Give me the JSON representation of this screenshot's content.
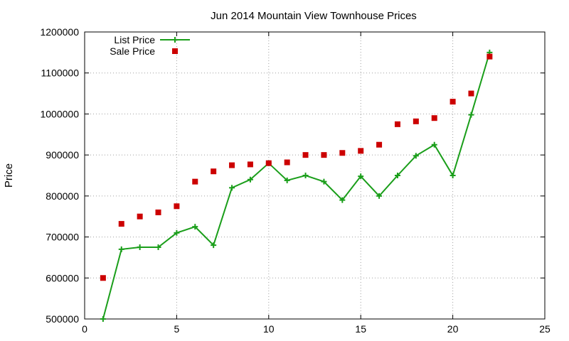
{
  "chart_data": {
    "type": "line",
    "title": "Jun 2014 Mountain View Townhouse Prices",
    "xlabel": "",
    "ylabel": "Price",
    "xlim": [
      0,
      25
    ],
    "ylim": [
      500000,
      1200000
    ],
    "x_ticks": [
      0,
      5,
      10,
      15,
      20,
      25
    ],
    "y_ticks": [
      500000,
      600000,
      700000,
      800000,
      900000,
      1000000,
      1100000,
      1200000
    ],
    "grid": true,
    "legend_position": "top-left",
    "series": [
      {
        "name": "List Price",
        "style": "line+cross",
        "color": "#1a9e1a",
        "x": [
          1,
          2,
          3,
          4,
          5,
          6,
          7,
          8,
          9,
          10,
          11,
          12,
          13,
          14,
          15,
          16,
          17,
          18,
          19,
          20,
          21,
          22
        ],
        "y": [
          500000,
          670000,
          675000,
          675000,
          710000,
          725000,
          680000,
          820000,
          840000,
          880000,
          838000,
          850000,
          835000,
          790000,
          848000,
          800000,
          850000,
          898000,
          925000,
          850000,
          998000,
          1150000
        ]
      },
      {
        "name": "Sale Price",
        "style": "square",
        "color": "#cc0000",
        "x": [
          1,
          2,
          3,
          4,
          5,
          6,
          7,
          8,
          9,
          10,
          11,
          12,
          13,
          14,
          15,
          16,
          17,
          18,
          19,
          20,
          21,
          22
        ],
        "y": [
          600000,
          732000,
          750000,
          760000,
          775000,
          835000,
          860000,
          875000,
          877000,
          880000,
          882000,
          900000,
          900000,
          905000,
          910000,
          925000,
          975000,
          982000,
          990000,
          1030000,
          1050000,
          1140000
        ]
      }
    ]
  }
}
